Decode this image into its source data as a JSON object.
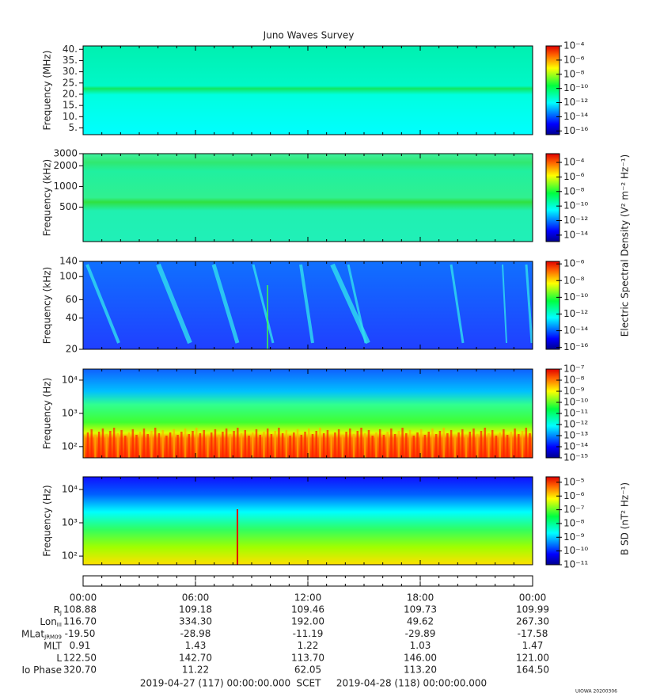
{
  "title": "Juno Waves Survey",
  "time_axis": {
    "xlim": [
      0,
      24
    ],
    "xticks": [
      {
        "value": 0,
        "label": "00:00"
      },
      {
        "value": 6,
        "label": "06:00"
      },
      {
        "value": 12,
        "label": "12:00"
      },
      {
        "value": 18,
        "label": "18:00"
      },
      {
        "value": 24,
        "label": "00:00"
      }
    ]
  },
  "chart_data": [
    {
      "type": "spectrogram",
      "ylabel": "Frequency (MHz)",
      "log": false,
      "ylim": [
        2,
        41.5
      ],
      "yticks": [
        {
          "value": 5,
          "label": "5."
        },
        {
          "value": 10,
          "label": "10."
        },
        {
          "value": 15,
          "label": "15."
        },
        {
          "value": 20,
          "label": "20."
        },
        {
          "value": 25,
          "label": "25."
        },
        {
          "value": 30,
          "label": "30."
        },
        {
          "value": 35,
          "label": "35."
        },
        {
          "value": 40,
          "label": "40."
        }
      ],
      "clim": [
        3e-17,
        0.0001
      ],
      "cticks": [
        {
          "value": 1e-16,
          "label": "10⁻¹⁶"
        },
        {
          "value": 1e-14,
          "label": "10⁻¹⁴"
        },
        {
          "value": 1e-12,
          "label": "10⁻¹²"
        },
        {
          "value": 1e-10,
          "label": "10⁻¹⁰"
        },
        {
          "value": 1e-08,
          "label": "10⁻⁸"
        },
        {
          "value": 1e-06,
          "label": "10⁻⁶"
        },
        {
          "value": 0.0001,
          "label": "10⁻⁴"
        }
      ]
    },
    {
      "type": "spectrogram",
      "ylabel": "Frequency (kHz)",
      "log": true,
      "ylim": [
        158,
        3000
      ],
      "yticks": [
        500,
        1000,
        2000,
        3000
      ],
      "clim": [
        1.3e-15,
        0.0016
      ],
      "cticks": [
        {
          "value": 1e-14,
          "label": "10⁻¹⁴"
        },
        {
          "value": 1e-12,
          "label": "10⁻¹²"
        },
        {
          "value": 1e-10,
          "label": "10⁻¹⁰"
        },
        {
          "value": 1e-08,
          "label": "10⁻⁸"
        },
        {
          "value": 1e-06,
          "label": "10⁻⁶"
        },
        {
          "value": 0.0001,
          "label": "10⁻⁴"
        }
      ]
    },
    {
      "type": "spectrogram",
      "ylabel": "Frequency (kHz)",
      "log": true,
      "ylim": [
        20,
        140
      ],
      "yticks": [
        20,
        40,
        60,
        100,
        140
      ],
      "clim": [
        6e-17,
        2e-06
      ],
      "cticks": [
        {
          "value": 1e-16,
          "label": "10⁻¹⁶"
        },
        {
          "value": 1e-14,
          "label": "10⁻¹⁴"
        },
        {
          "value": 1e-12,
          "label": "10⁻¹²"
        },
        {
          "value": 1e-10,
          "label": "10⁻¹⁰"
        },
        {
          "value": 1e-08,
          "label": "10⁻⁸"
        },
        {
          "value": 1e-06,
          "label": "10⁻⁶"
        }
      ]
    },
    {
      "type": "spectrogram",
      "ylabel": "Frequency (Hz)",
      "log": true,
      "ylim": [
        46,
        21500
      ],
      "yticks": [
        {
          "value": 100,
          "label": "10²"
        },
        {
          "value": 1000,
          "label": "10³"
        },
        {
          "value": 10000,
          "label": "10⁴"
        }
      ],
      "clim": [
        1e-15,
        1e-07
      ],
      "cticks": [
        {
          "value": 1e-15,
          "label": "10⁻¹⁵"
        },
        {
          "value": 1e-14,
          "label": "10⁻¹⁴"
        },
        {
          "value": 1e-13,
          "label": "10⁻¹³"
        },
        {
          "value": 1e-12,
          "label": "10⁻¹²"
        },
        {
          "value": 1e-11,
          "label": "10⁻¹¹"
        },
        {
          "value": 1e-10,
          "label": "10⁻¹⁰"
        },
        {
          "value": 1e-09,
          "label": "10⁻⁹"
        },
        {
          "value": 1e-08,
          "label": "10⁻⁸"
        },
        {
          "value": 1e-07,
          "label": "10⁻⁷"
        }
      ]
    },
    {
      "type": "spectrogram",
      "ylabel": "Frequency (Hz)",
      "log": true,
      "ylim": [
        55,
        24000
      ],
      "yticks": [
        {
          "value": 100,
          "label": "10²"
        },
        {
          "value": 1000,
          "label": "10³"
        },
        {
          "value": 10000,
          "label": "10⁴"
        }
      ],
      "clim": [
        1e-11,
        2.5e-05
      ],
      "cticks": [
        {
          "value": 1e-11,
          "label": "10⁻¹¹"
        },
        {
          "value": 1e-10,
          "label": "10⁻¹⁰"
        },
        {
          "value": 1e-09,
          "label": "10⁻⁹"
        },
        {
          "value": 1e-08,
          "label": "10⁻⁸"
        },
        {
          "value": 1e-07,
          "label": "10⁻⁷"
        },
        {
          "value": 1e-06,
          "label": "10⁻⁶"
        },
        {
          "value": 1e-05,
          "label": "10⁻⁵"
        }
      ]
    }
  ],
  "colorbar_labels": [
    "Electric Spectral Density (V² m⁻² Hz⁻¹)",
    "B SD (nT² Hz⁻¹)"
  ],
  "ephemeris": {
    "rows": [
      {
        "label": "R",
        "sub": "J",
        "values": [
          "108.88",
          "109.18",
          "109.46",
          "109.73",
          "109.99"
        ]
      },
      {
        "label": "Lon",
        "sub": "III",
        "values": [
          "116.70",
          "334.30",
          "192.00",
          "49.62",
          "267.30"
        ]
      },
      {
        "label": "MLat",
        "sub": "JRM09",
        "values": [
          "-19.50",
          "-28.98",
          "-11.19",
          "-29.89",
          "-17.58"
        ]
      },
      {
        "label": "MLT",
        "values": [
          "0.91",
          "1.43",
          "1.22",
          "1.03",
          "1.47"
        ]
      },
      {
        "label": "L",
        "values": [
          "122.50",
          "142.70",
          "113.70",
          "146.00",
          "121.00"
        ]
      },
      {
        "label": "Io Phase",
        "values": [
          "320.70",
          "11.22",
          "62.05",
          "113.20",
          "164.50"
        ]
      }
    ]
  },
  "footer": {
    "start": "2019-04-27 (117) 00:00:00.000",
    "scet": "SCET",
    "end": "2019-04-28 (118) 00:00:00.000"
  },
  "stamp": "UIOWA 20200306"
}
